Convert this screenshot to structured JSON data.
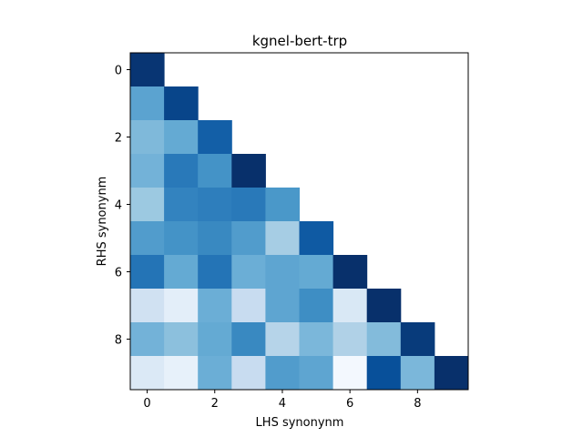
{
  "chart_data": {
    "type": "heatmap",
    "title": "kgnel-bert-trp",
    "xlabel": "LHS synonynm",
    "ylabel": "RHS synonynm",
    "colormap": "Blues",
    "xlim": [
      -0.5,
      9.5
    ],
    "ylim": [
      9.5,
      -0.5
    ],
    "xticks": [
      "0",
      "2",
      "4",
      "6",
      "8"
    ],
    "yticks": [
      "0",
      "2",
      "4",
      "6",
      "8"
    ],
    "grid": false,
    "lower_triangle": true,
    "values": [
      [
        0.98
      ],
      [
        0.55,
        0.92
      ],
      [
        0.45,
        0.52,
        0.82
      ],
      [
        0.48,
        0.72,
        0.62,
        1.0
      ],
      [
        0.38,
        0.68,
        0.7,
        0.72,
        0.6
      ],
      [
        0.58,
        0.62,
        0.66,
        0.58,
        0.35,
        0.84
      ],
      [
        0.74,
        0.52,
        0.74,
        0.5,
        0.54,
        0.52,
        1.0
      ],
      [
        0.2,
        0.1,
        0.5,
        0.24,
        0.54,
        0.64,
        0.15,
        1.0
      ],
      [
        0.48,
        0.42,
        0.52,
        0.66,
        0.3,
        0.46,
        0.32,
        0.44,
        0.96
      ],
      [
        0.14,
        0.08,
        0.5,
        0.24,
        0.58,
        0.54,
        0.02,
        0.88,
        0.46,
        1.0
      ]
    ]
  }
}
